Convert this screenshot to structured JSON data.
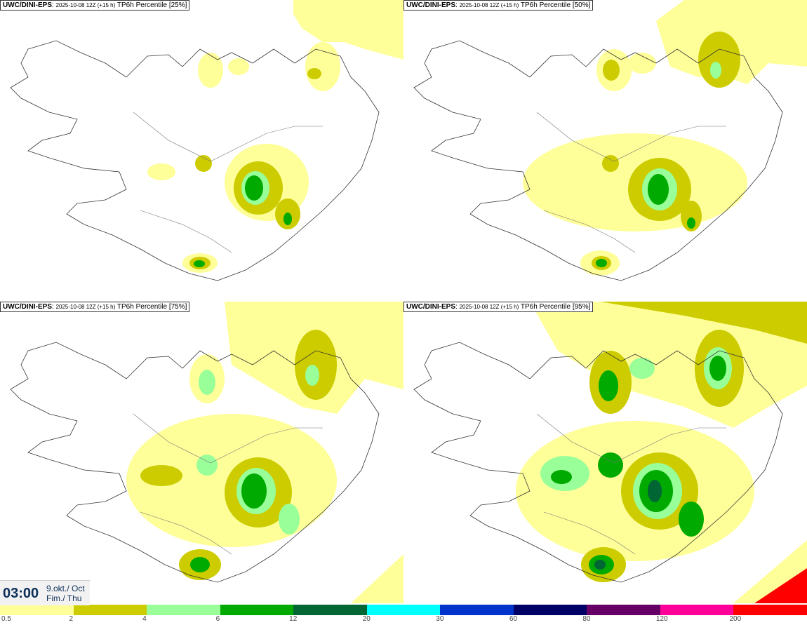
{
  "panels": [
    {
      "model": "UWC/DINI-EPS",
      "run": "2025-10-08 12Z (+15 h)",
      "product": "TP6h Percentile [25%]"
    },
    {
      "model": "UWC/DINI-EPS",
      "run": "2025-10-08 12Z (+15 h)",
      "product": "TP6h Percentile [50%]"
    },
    {
      "model": "UWC/DINI-EPS",
      "run": "2025-10-08 12Z (+15 h)",
      "product": "TP6h Percentile [75%]"
    },
    {
      "model": "UWC/DINI-EPS",
      "run": "2025-10-08 12Z (+15 h)",
      "product": "TP6h Percentile [95%]"
    }
  ],
  "valid_time": {
    "time": "03:00",
    "date": "9.okt./ Oct",
    "day": "Fim./ Thu"
  },
  "legend": {
    "ticks": [
      "0.5",
      "2",
      "4",
      "6",
      "12",
      "20",
      "30",
      "60",
      "80",
      "120",
      "200"
    ],
    "colors": [
      "#ffff99",
      "#cccc00",
      "#99ff99",
      "#00aa00",
      "#006633",
      "#00ffff",
      "#0033cc",
      "#000066",
      "#660066",
      "#ff0099",
      "#ff0000"
    ]
  },
  "colors": {
    "light_yellow": "#ffff99",
    "olive": "#cccc00",
    "light_green": "#99ff99",
    "green": "#00aa00",
    "dark_green": "#006633"
  }
}
